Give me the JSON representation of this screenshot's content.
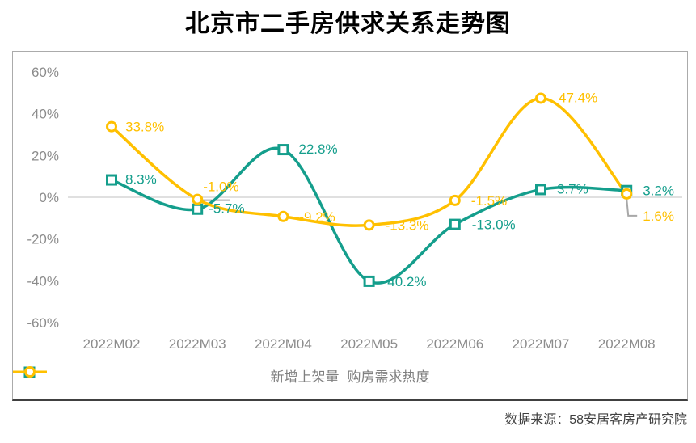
{
  "title": "北京市二手房供求关系走势图",
  "source": "数据来源：58安居客房产研究院",
  "legend": [
    {
      "label": "新增上架量",
      "marker": "square",
      "color": "#149E8C"
    },
    {
      "label": "购房需求热度",
      "marker": "circle",
      "color": "#FFC000"
    }
  ],
  "colors": {
    "title": "#000000",
    "axis_text": "#8c8c8c",
    "legend_text": "#7f7f7f",
    "source_text": "#3f3f3f",
    "gridline": "#d6d6d6",
    "leader_line": "#a8a8a8",
    "box_border": "#ababab",
    "box_border_bottom": "#404040",
    "series_new_listings": "#149E8C",
    "series_demand_heat": "#FFC000"
  },
  "chart_data": {
    "type": "line",
    "title": "北京市二手房供求关系走势图",
    "xlabel": "",
    "ylabel": "",
    "categories": [
      "2022M02",
      "2022M03",
      "2022M04",
      "2022M05",
      "2022M06",
      "2022M07",
      "2022M08"
    ],
    "y_ticks": [
      {
        "value": 60,
        "label": "60%"
      },
      {
        "value": 40,
        "label": "40%"
      },
      {
        "value": 20,
        "label": "20%"
      },
      {
        "value": 0,
        "label": "0%"
      },
      {
        "value": -20,
        "label": "-20%"
      },
      {
        "value": -40,
        "label": "-40%"
      },
      {
        "value": -60,
        "label": "-60%"
      }
    ],
    "ylim": [
      -60,
      60
    ],
    "grid": "horizontal line at 0% only",
    "legend_position": "bottom",
    "line_style": "smooth",
    "series": [
      {
        "name": "新增上架量",
        "color": "#149E8C",
        "marker": "square",
        "values": [
          8.3,
          -5.7,
          22.8,
          -40.2,
          -13.0,
          3.7,
          3.2
        ],
        "labels": [
          "8.3%",
          "-5.7%",
          "22.8%",
          "-40.2%",
          "-13.0%",
          "3.7%",
          "3.2%"
        ],
        "label_offsets": [
          [
            17,
            -1
          ],
          [
            14,
            -1
          ],
          [
            19,
            -1
          ],
          [
            17,
            0
          ],
          [
            21,
            0
          ],
          [
            20,
            -1
          ],
          [
            20,
            0
          ]
        ]
      },
      {
        "name": "购房需求热度",
        "color": "#FFC000",
        "marker": "circle",
        "values": [
          33.8,
          -1.0,
          -9.2,
          -13.3,
          -1.5,
          47.4,
          1.6
        ],
        "labels": [
          "33.8%",
          "-1.0%",
          "-9.2%",
          "-13.3%",
          "-1.5%",
          "47.4%",
          "1.6%"
        ],
        "label_offsets": [
          [
            17,
            0
          ],
          [
            7,
            -16
          ],
          [
            20,
            0
          ],
          [
            20,
            0
          ],
          [
            20,
            0
          ],
          [
            22,
            -1
          ],
          [
            20,
            27
          ]
        ]
      }
    ],
    "leader_lines": [
      {
        "series": 1,
        "point": 1,
        "segments": [
          [
            0,
            1
          ],
          [
            40,
            1
          ]
        ]
      },
      {
        "series": 1,
        "point": 6,
        "segments": [
          [
            0,
            6
          ],
          [
            2,
            27
          ],
          [
            13,
            27
          ]
        ]
      }
    ]
  }
}
